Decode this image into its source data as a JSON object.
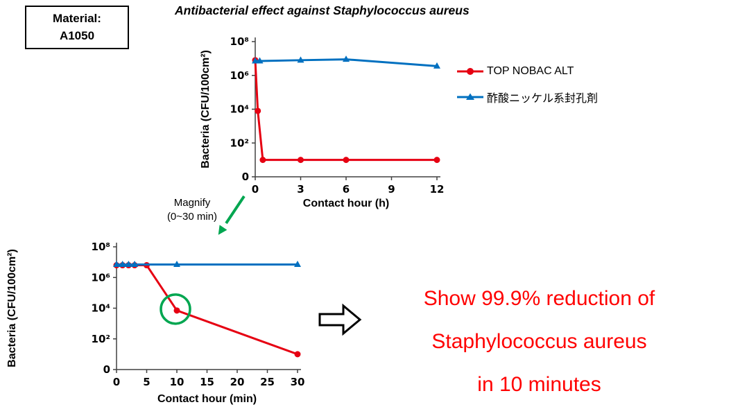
{
  "material_box": {
    "line1": "Material:",
    "line2": "A1050"
  },
  "title": "Antibacterial effect against Staphylococcus aureus",
  "legend": [
    {
      "label": "TOP NOBAC ALT",
      "color": "#e60012",
      "marker": "circle"
    },
    {
      "label": "酢酸ニッケル系封孔剤",
      "color": "#0070c0",
      "marker": "triangle"
    }
  ],
  "magnify": {
    "line1": "Magnify",
    "line2": "(0~30 min)"
  },
  "result": {
    "line1": "Show 99.9% reduction of",
    "line2": "Staphylococcus aureus",
    "line3": "in 10 minutes",
    "color": "#ff0000"
  },
  "colors": {
    "green_accent": "#00a650",
    "axis": "#404040"
  },
  "chart_data": [
    {
      "type": "line",
      "title": "Antibacterial effect against Staphylococcus aureus",
      "xlabel": "Contact hour (h)",
      "ylabel": "Bacteria (CFU/100cm²)",
      "x_ticks": [
        0,
        3,
        6,
        9,
        12
      ],
      "y_axis": {
        "scale": "log10",
        "tick_labels": [
          "10⁸",
          "10⁶",
          "10⁴",
          "10²",
          "0"
        ],
        "tick_log10": [
          8,
          6,
          4,
          2,
          0
        ]
      },
      "legend_position": "right",
      "grid": false,
      "series": [
        {
          "name": "TOP NOBAC ALT",
          "color": "#e60012",
          "marker": "circle",
          "points": [
            {
              "x": 0,
              "log10y": 6.9
            },
            {
              "x": 0.17,
              "log10y": 3.9
            },
            {
              "x": 0.5,
              "log10y": 1.0
            },
            {
              "x": 3,
              "log10y": 1.0
            },
            {
              "x": 6,
              "log10y": 1.0
            },
            {
              "x": 12,
              "log10y": 1.0
            }
          ]
        },
        {
          "name": "酢酸ニッケル系封孔剤",
          "color": "#0070c0",
          "marker": "triangle",
          "points": [
            {
              "x": 0,
              "log10y": 6.85
            },
            {
              "x": 0.3,
              "log10y": 6.85
            },
            {
              "x": 3,
              "log10y": 6.9
            },
            {
              "x": 6,
              "log10y": 6.95
            },
            {
              "x": 12,
              "log10y": 6.55
            }
          ]
        }
      ]
    },
    {
      "type": "line",
      "title": "Magnify (0~30 min)",
      "xlabel": "Contact hour (min)",
      "ylabel": "Bacteria (CFU/100cm²)",
      "x_ticks": [
        0,
        5,
        10,
        15,
        20,
        25,
        30
      ],
      "y_axis": {
        "scale": "log10",
        "tick_labels": [
          "10⁸",
          "10⁶",
          "10⁴",
          "10²",
          "0"
        ],
        "tick_log10": [
          8,
          6,
          4,
          2,
          0
        ]
      },
      "grid": false,
      "series": [
        {
          "name": "TOP NOBAC ALT",
          "color": "#e60012",
          "marker": "circle",
          "points": [
            {
              "x": 0,
              "log10y": 6.8
            },
            {
              "x": 1,
              "log10y": 6.8
            },
            {
              "x": 2,
              "log10y": 6.8
            },
            {
              "x": 3,
              "log10y": 6.8
            },
            {
              "x": 5,
              "log10y": 6.8
            },
            {
              "x": 10,
              "log10y": 3.85
            },
            {
              "x": 30,
              "log10y": 1.0
            }
          ]
        },
        {
          "name": "酢酸ニッケル系封孔剤",
          "color": "#0070c0",
          "marker": "triangle",
          "points": [
            {
              "x": 0,
              "log10y": 6.85
            },
            {
              "x": 1,
              "log10y": 6.85
            },
            {
              "x": 2,
              "log10y": 6.85
            },
            {
              "x": 3,
              "log10y": 6.85
            },
            {
              "x": 10,
              "log10y": 6.85
            },
            {
              "x": 30,
              "log10y": 6.85
            }
          ]
        }
      ],
      "annotation": {
        "type": "highlight-circle",
        "x": 10,
        "log10y": 3.85,
        "color": "#00a650"
      }
    }
  ]
}
